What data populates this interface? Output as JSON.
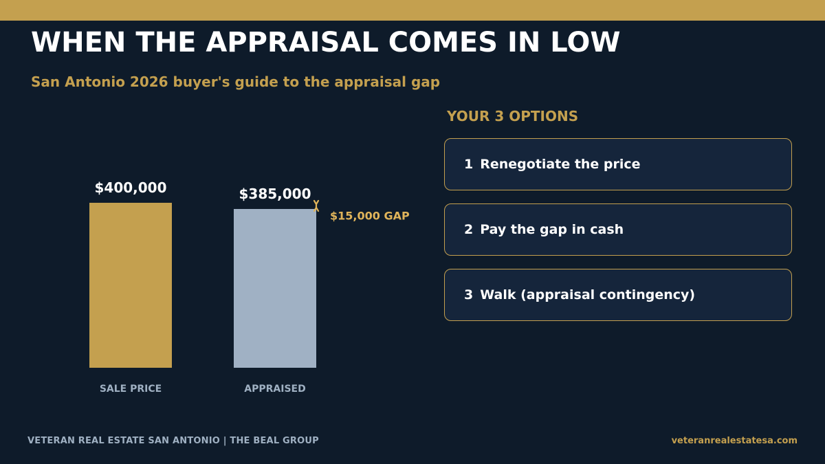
{
  "header": {
    "title": "WHEN THE APPRAISAL COMES IN LOW",
    "subtitle": "San Antonio 2026 buyer's guide to the appraisal gap"
  },
  "chart_data": {
    "type": "bar",
    "categories": [
      "SALE PRICE",
      "APPRAISED"
    ],
    "values": [
      400000,
      385000
    ],
    "value_labels": [
      "$400,000",
      "$385,000"
    ],
    "colors": [
      "#c4a04f",
      "#a0b1c4"
    ],
    "annotation": "$15,000 GAP",
    "annotation_color": "#e0b45a"
  },
  "options": {
    "heading": "YOUR 3 OPTIONS",
    "items": [
      {
        "num": "1",
        "label": "Renegotiate the price"
      },
      {
        "num": "2",
        "label": "Pay the gap in cash"
      },
      {
        "num": "3",
        "label": "Walk (appraisal contingency)"
      }
    ]
  },
  "footer": {
    "left": "VETERAN REAL ESTATE SAN ANTONIO  |  THE BEAL GROUP",
    "right": "veteranrealestatesa.com"
  },
  "colors": {
    "background": "#0e1b2a",
    "accent_gold": "#c4a04f",
    "card_background": "#15253b",
    "muted_text": "#9fb0c2"
  }
}
